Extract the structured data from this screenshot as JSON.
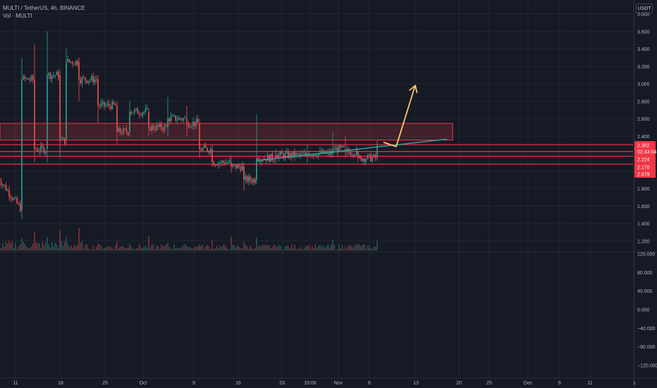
{
  "header": {
    "symbol_line": "MULTI / TetherUS, 4h, BINANCE",
    "volume_line": "Vol · MULTI",
    "currency": "USDT"
  },
  "colors": {
    "background": "#161a25",
    "grid": "#222631",
    "up": "#26a69a",
    "down": "#ef5350",
    "zone": "#f23645",
    "trendline": "#26a69a",
    "arrow": "#ffc46b",
    "axis_text": "#b2b5be"
  },
  "chart_data": [
    {
      "type": "candlestick",
      "title": "MULTI / TetherUS, 4h, BINANCE",
      "x_tick_labels": [
        "11",
        "18",
        "25",
        "Oct",
        "9",
        "16",
        "23",
        "15:00",
        "Nov",
        "6",
        "13",
        "20",
        "25",
        "Dec",
        "6",
        "11",
        "1"
      ],
      "y_tick_labels": [
        "1.200",
        "1.400",
        "1.600",
        "1.800",
        "2.000",
        "2.200",
        "2.400",
        "2.600",
        "2.800",
        "3.000",
        "3.200",
        "3.400",
        "3.600",
        "3.800"
      ],
      "ylim": [
        1.16,
        3.93
      ],
      "price_axis_badges": [
        "2.302",
        "02:43:04",
        "2.224",
        "2.170",
        "2.079"
      ],
      "resistance_zone": [
        2.355,
        2.545
      ],
      "support_levels": [
        2.302,
        2.224,
        2.17,
        2.079
      ],
      "trendline": {
        "from": {
          "time": "Oct 19",
          "price": 2.12
        },
        "to": {
          "time": "Nov 18",
          "price": 2.365
        }
      },
      "projection_arrow": [
        {
          "time": "Nov 8",
          "price": 2.33
        },
        {
          "time": "Nov 10",
          "price": 2.28
        },
        {
          "time": "Nov 13",
          "price": 2.98
        }
      ],
      "ohlc": [
        {
          "x": "Sep 08",
          "o": 2.0,
          "h": 2.35,
          "l": 1.7,
          "c": 1.95
        },
        {
          "x": "Sep 12",
          "o": 1.55,
          "h": 3.3,
          "l": 1.45,
          "c": 3.05
        },
        {
          "x": "Sep 14",
          "o": 3.05,
          "h": 3.45,
          "l": 2.1,
          "c": 2.25
        },
        {
          "x": "Sep 16",
          "o": 2.25,
          "h": 3.6,
          "l": 2.1,
          "c": 3.1
        },
        {
          "x": "Sep 18",
          "o": 3.1,
          "h": 3.15,
          "l": 2.15,
          "c": 2.35
        },
        {
          "x": "Sep 19",
          "o": 2.35,
          "h": 3.4,
          "l": 2.3,
          "c": 3.25
        },
        {
          "x": "Sep 21",
          "o": 3.25,
          "h": 3.3,
          "l": 2.8,
          "c": 3.05
        },
        {
          "x": "Sep 24",
          "o": 3.05,
          "h": 3.1,
          "l": 2.55,
          "c": 2.75
        },
        {
          "x": "Sep 27",
          "o": 2.75,
          "h": 2.8,
          "l": 2.3,
          "c": 2.45
        },
        {
          "x": "Sep 29",
          "o": 2.45,
          "h": 2.8,
          "l": 2.4,
          "c": 2.68
        },
        {
          "x": "Oct 02",
          "o": 2.68,
          "h": 2.72,
          "l": 2.4,
          "c": 2.5
        },
        {
          "x": "Oct 05",
          "o": 2.5,
          "h": 2.85,
          "l": 2.4,
          "c": 2.6
        },
        {
          "x": "Oct 08",
          "o": 2.6,
          "h": 2.75,
          "l": 2.4,
          "c": 2.55
        },
        {
          "x": "Oct 10",
          "o": 2.55,
          "h": 2.6,
          "l": 2.15,
          "c": 2.25
        },
        {
          "x": "Oct 12",
          "o": 2.25,
          "h": 2.3,
          "l": 2.05,
          "c": 2.1
        },
        {
          "x": "Oct 15",
          "o": 2.1,
          "h": 2.18,
          "l": 1.98,
          "c": 2.05
        },
        {
          "x": "Oct 17",
          "o": 2.05,
          "h": 2.1,
          "l": 1.78,
          "c": 1.9
        },
        {
          "x": "Oct 19",
          "o": 1.9,
          "h": 2.65,
          "l": 1.85,
          "c": 2.15
        },
        {
          "x": "Oct 22",
          "o": 2.15,
          "h": 2.25,
          "l": 2.08,
          "c": 2.18
        },
        {
          "x": "Oct 27",
          "o": 2.18,
          "h": 2.3,
          "l": 2.1,
          "c": 2.2
        },
        {
          "x": "Oct 31",
          "o": 2.2,
          "h": 2.45,
          "l": 2.15,
          "c": 2.25
        },
        {
          "x": "Nov 02",
          "o": 2.25,
          "h": 2.4,
          "l": 2.15,
          "c": 2.22
        },
        {
          "x": "Nov 04",
          "o": 2.22,
          "h": 2.25,
          "l": 2.1,
          "c": 2.15
        },
        {
          "x": "Nov 07",
          "o": 2.15,
          "h": 2.35,
          "l": 2.12,
          "c": 2.3
        }
      ]
    },
    {
      "type": "bar",
      "title": "Vol · MULTI",
      "y_tick_labels": [
        "−120.000",
        "−80.000",
        "−40.000",
        "0.000",
        "40.000",
        "80.000",
        "120.000"
      ],
      "ylim": [
        -130000,
        130000
      ]
    }
  ]
}
